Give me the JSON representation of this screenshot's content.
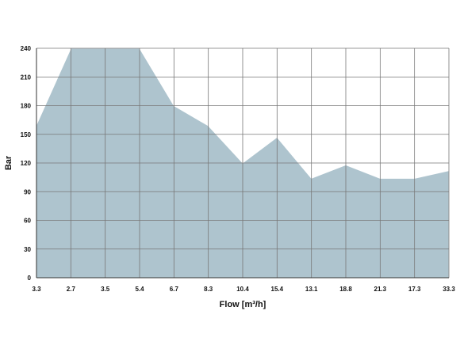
{
  "chart_data": {
    "type": "area",
    "categories": [
      "3.3",
      "2.7",
      "3.5",
      "5.4",
      "6.7",
      "8.3",
      "10.4",
      "15.4",
      "13.1",
      "18.8",
      "21.3",
      "17.3",
      "33.3"
    ],
    "series": [
      {
        "values": [
          160,
          240,
          240,
          240,
          180,
          159,
          120,
          147,
          104,
          118,
          104,
          104,
          112
        ],
        "fill_color": "#aec4ce",
        "edge_color": "#ffffff"
      }
    ],
    "title": "",
    "xlabel": "Flow [m³/h]",
    "ylabel": "Bar",
    "yticks": [
      0,
      30,
      60,
      90,
      120,
      150,
      180,
      210,
      240
    ],
    "ylim": [
      0,
      240
    ],
    "grid": true,
    "grid_color": "#777777",
    "legend": "none"
  }
}
